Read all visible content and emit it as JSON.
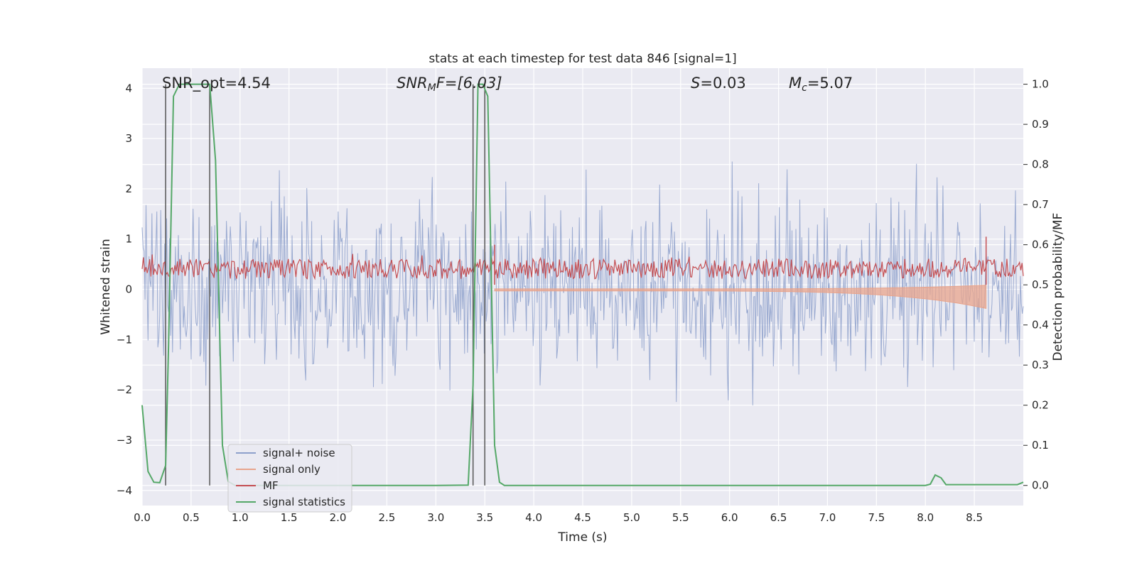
{
  "chart_data": {
    "type": "line",
    "title": "stats at each timestep for test data 846 [signal=1]",
    "xlabel": "Time (s)",
    "ylabel_left": "Whitened strain",
    "ylabel_right": "Detection probability/MF",
    "xlim": [
      0.0,
      9.0
    ],
    "ylim_left": [
      -4.3,
      4.4
    ],
    "ylim_right": [
      -0.05,
      1.04
    ],
    "xticks": [
      "0.0",
      "0.5",
      "1.0",
      "1.5",
      "2.0",
      "2.5",
      "3.0",
      "3.5",
      "4.0",
      "4.5",
      "5.0",
      "5.5",
      "6.0",
      "6.5",
      "7.0",
      "7.5",
      "8.0",
      "8.5"
    ],
    "yticks_left": [
      "4",
      "3",
      "2",
      "1",
      "0",
      "−1",
      "−2",
      "−3",
      "−4"
    ],
    "yticks_right": [
      "1.0",
      "0.9",
      "0.8",
      "0.7",
      "0.6",
      "0.5",
      "0.4",
      "0.3",
      "0.2",
      "0.1",
      "0.0"
    ],
    "annotations": {
      "snr_opt": "SNR_opt=4.54",
      "snr_mf_base": "SNR",
      "snr_mf_sub": "M",
      "snr_mf_rest": "F=[6.03]",
      "s_var": "S",
      "s_rest": "=0.03",
      "mc_base": "M",
      "mc_sub": "c",
      "mc_rest": "=5.07"
    },
    "legend": {
      "placement": "lower-left",
      "entries": [
        {
          "label": "signal+ noise",
          "color": "#8da0cb"
        },
        {
          "label": "signal only",
          "color": "#e8a48c"
        },
        {
          "label": "MF",
          "color": "#c44e52"
        },
        {
          "label": "signal statistics",
          "color": "#55a868"
        }
      ]
    },
    "vertical_lines_x": [
      0.24,
      0.69,
      3.38,
      3.5
    ],
    "series": [
      {
        "name": "signal statistics",
        "axis": "right",
        "color": "#55a868",
        "x": [
          0.0,
          0.06,
          0.12,
          0.18,
          0.24,
          0.27,
          0.32,
          0.38,
          0.44,
          0.5,
          0.56,
          0.62,
          0.69,
          0.75,
          0.82,
          0.88,
          0.95,
          3.0,
          3.33,
          3.38,
          3.43,
          3.48,
          3.53,
          3.6,
          3.65,
          3.7,
          4.0,
          8.0,
          8.05,
          8.1,
          8.16,
          8.21,
          8.5,
          8.94,
          9.0
        ],
        "values": [
          0.2,
          0.035,
          0.008,
          0.007,
          0.05,
          0.35,
          0.97,
          1.0,
          1.0,
          1.0,
          1.0,
          1.0,
          1.0,
          0.81,
          0.1,
          0.01,
          0.0,
          0.0,
          0.001,
          0.25,
          1.0,
          1.0,
          0.97,
          0.1,
          0.008,
          0.0,
          0.0,
          0.0,
          0.003,
          0.026,
          0.019,
          0.002,
          0.002,
          0.002,
          0.008
        ]
      },
      {
        "name": "MF",
        "axis": "right",
        "color": "#c44e52",
        "x": [
          3.6,
          8.62
        ],
        "values": [
          0.6,
          0.62
        ]
      }
    ]
  }
}
